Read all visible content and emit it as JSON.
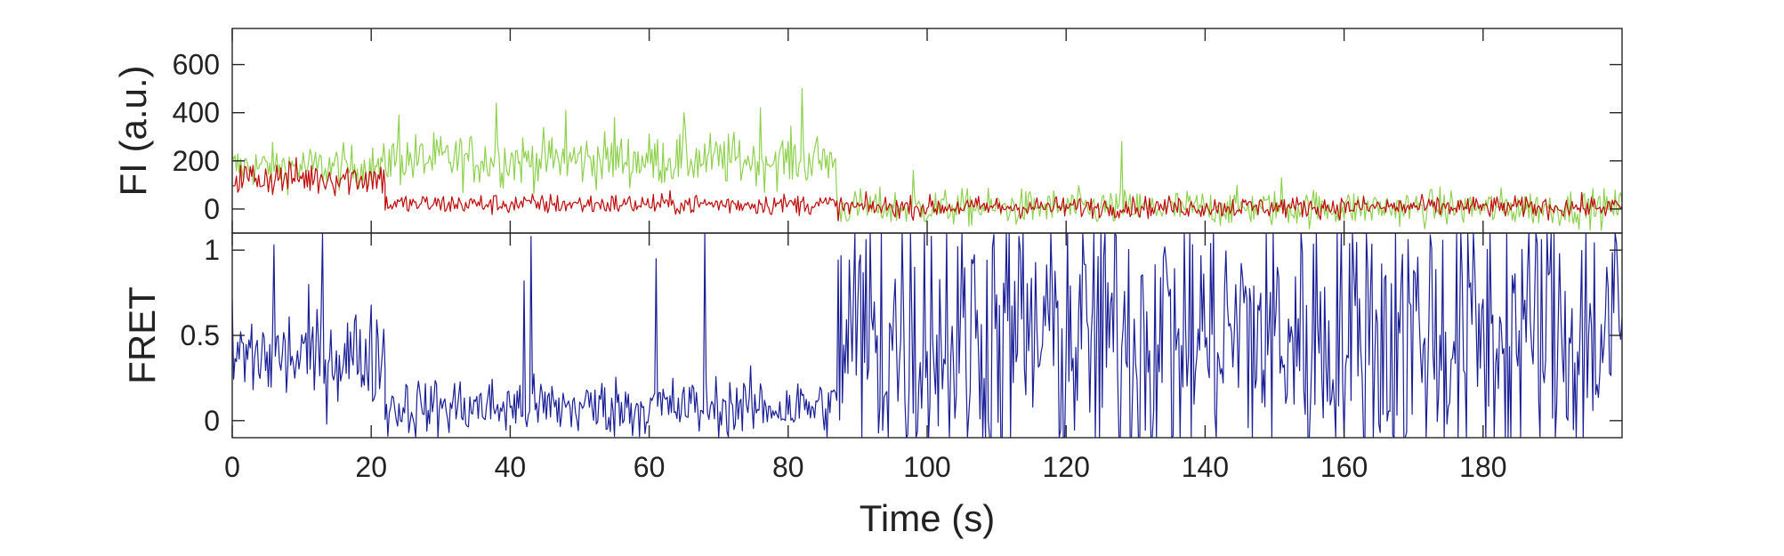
{
  "chart_data": [
    {
      "type": "line",
      "panel": "top",
      "ylabel": "FI (a.u.)",
      "xlim": [
        0,
        200
      ],
      "ylim": [
        -100,
        750
      ],
      "yticks": [
        0,
        200,
        400,
        600
      ],
      "grid": false,
      "series": [
        {
          "color": "#8fd14f",
          "segments": [
            {
              "x0": 0,
              "x1": 22,
              "mean": 175,
              "noise": 45
            },
            {
              "x0": 22,
              "x1": 87,
              "mean": 205,
              "noise": 55
            },
            {
              "x0": 87,
              "x1": 200,
              "mean": 5,
              "noise": 38
            }
          ],
          "spikes": [
            {
              "x": 24,
              "y": 390
            },
            {
              "x": 38,
              "y": 440
            },
            {
              "x": 48,
              "y": 410
            },
            {
              "x": 55,
              "y": 380
            },
            {
              "x": 65,
              "y": 400
            },
            {
              "x": 76,
              "y": 420
            },
            {
              "x": 82,
              "y": 500
            },
            {
              "x": 98,
              "y": 160
            },
            {
              "x": 128,
              "y": 280
            },
            {
              "x": 151,
              "y": 130
            }
          ]
        },
        {
          "color": "#bf0a0a",
          "segments": [
            {
              "x0": 0,
              "x1": 22,
              "mean": 130,
              "noise": 38
            },
            {
              "x0": 22,
              "x1": 87,
              "mean": 20,
              "noise": 22
            },
            {
              "x0": 87,
              "x1": 200,
              "mean": 8,
              "noise": 22
            }
          ],
          "spikes": []
        }
      ]
    },
    {
      "type": "line",
      "panel": "bottom",
      "xlabel": "Time (s)",
      "ylabel": "FRET",
      "xlim": [
        0,
        200
      ],
      "ylim": [
        -0.1,
        1.1
      ],
      "yticks": [
        0,
        0.5,
        1
      ],
      "xticks": [
        0,
        20,
        40,
        60,
        80,
        100,
        120,
        140,
        160,
        180
      ],
      "grid": false,
      "series": [
        {
          "color": "#1a1f96",
          "segments": [
            {
              "x0": 0,
              "x1": 22,
              "mean": 0.38,
              "noise": 0.15
            },
            {
              "x0": 22,
              "x1": 87,
              "mean": 0.08,
              "noise": 0.09
            },
            {
              "x0": 87,
              "x1": 200,
              "mean": 0.5,
              "noise": 0.45
            }
          ],
          "spikes": [
            {
              "x": 6,
              "y": 1.03
            },
            {
              "x": 13,
              "y": 1.1
            },
            {
              "x": 42,
              "y": 0.82
            },
            {
              "x": 43,
              "y": 1.08
            },
            {
              "x": 61,
              "y": 0.95
            },
            {
              "x": 68,
              "y": 1.1
            }
          ]
        }
      ]
    }
  ]
}
